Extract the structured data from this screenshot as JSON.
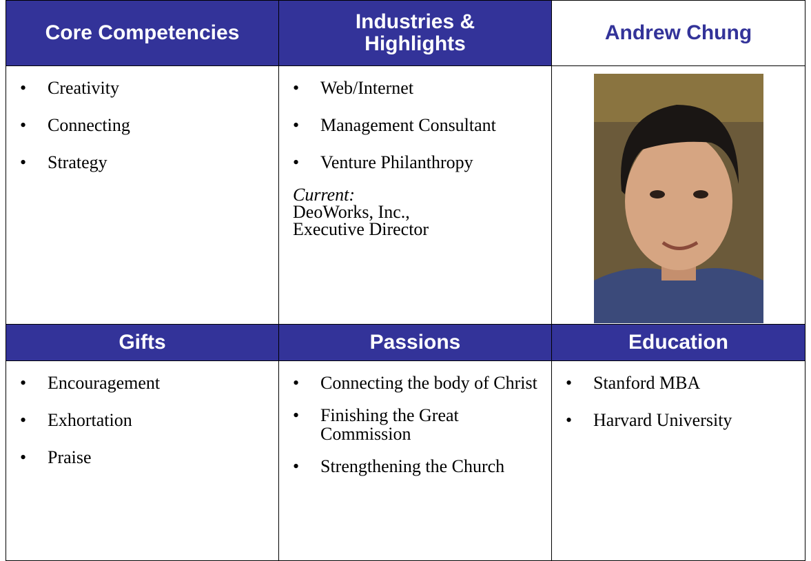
{
  "core_competencies": {
    "title": "Core Competencies",
    "items": [
      "Creativity",
      "Connecting",
      "Strategy"
    ]
  },
  "industries": {
    "title": "Industries & Highlights",
    "items": [
      "Web/Internet",
      "Management Consultant",
      "Venture Philanthropy"
    ],
    "current_label": "Current:",
    "current_lines": [
      "DeoWorks, Inc.,",
      "Executive Director"
    ]
  },
  "profile": {
    "name": "Andrew Chung"
  },
  "gifts": {
    "title": "Gifts",
    "items": [
      "Encouragement",
      "Exhortation",
      "Praise"
    ]
  },
  "passions": {
    "title": "Passions",
    "items": [
      "Connecting the body of Christ",
      "Finishing the Great Commission",
      "Strengthening the Church"
    ]
  },
  "education": {
    "title": "Education",
    "items": [
      "Stanford MBA",
      "Harvard University"
    ]
  }
}
